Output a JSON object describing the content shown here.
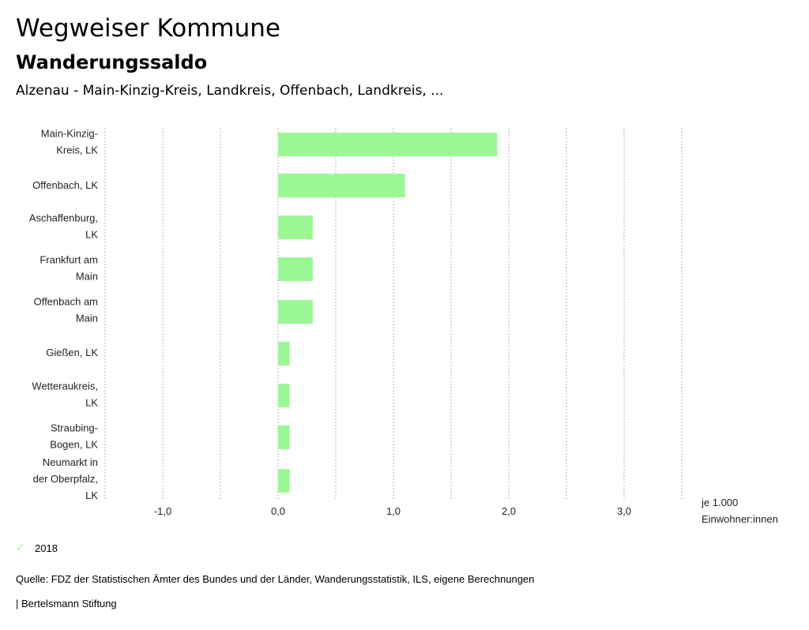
{
  "header": {
    "title": "Wegweiser Kommune",
    "subtitle": "Wanderungssaldo",
    "context": "Alzenau - Main-Kinzig-Kreis, Landkreis, Offenbach, Landkreis, ..."
  },
  "chart_data": {
    "type": "bar",
    "orientation": "horizontal",
    "title": "Wanderungssaldo",
    "categories": [
      [
        "Main-Kinzig-",
        "Kreis, LK"
      ],
      [
        "Offenbach, LK"
      ],
      [
        "Aschaffenburg,",
        "LK"
      ],
      [
        "Frankfurt am",
        "Main"
      ],
      [
        "Offenbach am",
        "Main"
      ],
      [
        "Gießen, LK"
      ],
      [
        "Wetteraukreis,",
        "LK"
      ],
      [
        "Straubing-",
        "Bogen, LK"
      ],
      [
        "Neumarkt in",
        "der Oberpfalz,",
        "LK"
      ]
    ],
    "series": [
      {
        "name": "2018",
        "color": "#9af993",
        "values": [
          1.9,
          1.1,
          0.3,
          0.3,
          0.3,
          0.1,
          0.1,
          0.1,
          0.1
        ]
      }
    ],
    "xlim": [
      -1.5,
      3.5
    ],
    "xticks": [
      -1.0,
      0.0,
      1.0,
      2.0,
      3.0
    ],
    "xtick_labels": [
      "-1,0",
      "0,0",
      "1,0",
      "2,0",
      "3,0"
    ],
    "gridlines": [
      -1.5,
      -1.0,
      -0.5,
      0.0,
      0.5,
      1.0,
      1.5,
      2.0,
      2.5,
      3.0,
      3.5
    ],
    "grid": true,
    "xlabel": [
      "je 1.000",
      "Einwohner:innen"
    ],
    "ylabel": "",
    "legend_position": "bottom-left"
  },
  "legend": {
    "items": [
      {
        "label": "2018",
        "icon": "check-icon",
        "color": "#9af993"
      }
    ]
  },
  "footer": {
    "source": "Quelle: FDZ der Statistischen Ämter des Bundes und der Länder, Wanderungsstatistik, ILS, eigene Berechnungen",
    "publisher": "| Bertelsmann Stiftung"
  }
}
